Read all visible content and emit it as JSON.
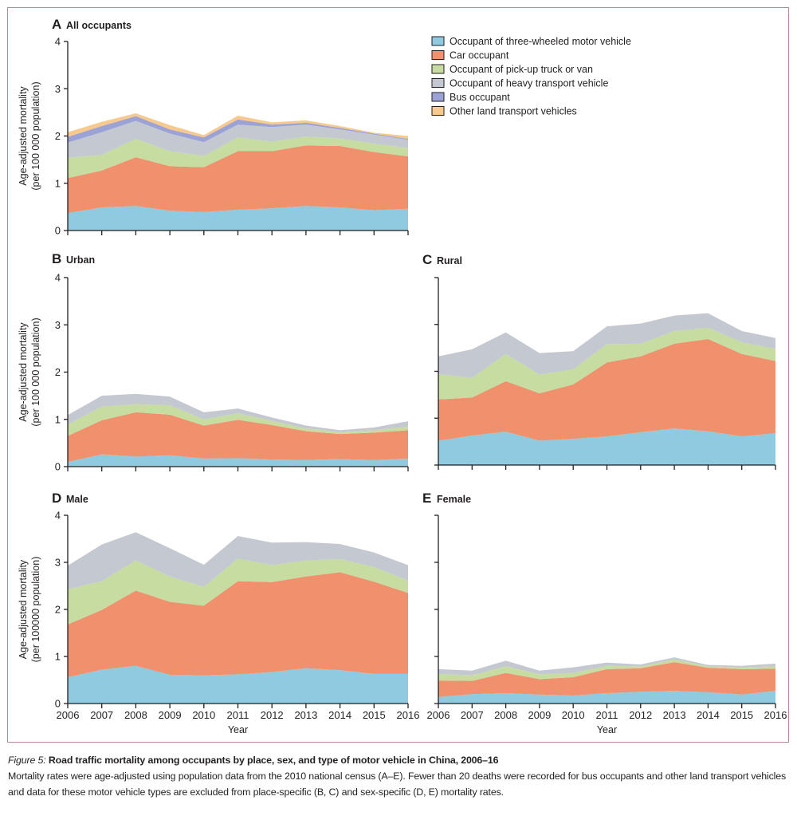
{
  "chart_data": [
    {
      "id": "A",
      "type": "area",
      "stacked": true,
      "panel_letter": "A",
      "title": "All occupants",
      "xlabel": "",
      "ylabel": "Age-adjusted mortality",
      "ylabel2": "(per 100 000 population)",
      "show_y_tick_labels": true,
      "show_x_tick_labels": false,
      "ylim": [
        0,
        4
      ],
      "yticks": [
        0,
        1,
        2,
        3,
        4
      ],
      "x": [
        2006,
        2007,
        2008,
        2009,
        2010,
        2011,
        2012,
        2013,
        2014,
        2015,
        2016
      ],
      "series": [
        {
          "name": "Occupant of three-wheeled motor vehicle",
          "key": "three_wheeled",
          "values": [
            0.37,
            0.49,
            0.52,
            0.42,
            0.39,
            0.44,
            0.47,
            0.52,
            0.49,
            0.43,
            0.46
          ]
        },
        {
          "name": "Car occupant",
          "key": "car",
          "values": [
            0.74,
            0.78,
            1.03,
            0.94,
            0.95,
            1.24,
            1.21,
            1.28,
            1.3,
            1.23,
            1.11
          ]
        },
        {
          "name": "Occupant of pick-up truck or van",
          "key": "pickup",
          "values": [
            0.43,
            0.33,
            0.39,
            0.32,
            0.24,
            0.29,
            0.2,
            0.19,
            0.16,
            0.18,
            0.18
          ]
        },
        {
          "name": "Occupant of heavy transport vehicle",
          "key": "heavy",
          "values": [
            0.32,
            0.48,
            0.38,
            0.37,
            0.29,
            0.27,
            0.31,
            0.25,
            0.19,
            0.19,
            0.17
          ]
        },
        {
          "name": "Bus occupant",
          "key": "bus",
          "values": [
            0.12,
            0.13,
            0.1,
            0.09,
            0.1,
            0.11,
            0.05,
            0.04,
            0.03,
            0.02,
            0.02
          ]
        },
        {
          "name": "Other land transport vehicles",
          "key": "other",
          "values": [
            0.1,
            0.09,
            0.06,
            0.09,
            0.05,
            0.08,
            0.05,
            0.05,
            0.04,
            0.02,
            0.06
          ]
        }
      ],
      "legend": "right"
    },
    {
      "id": "B",
      "type": "area",
      "stacked": true,
      "panel_letter": "B",
      "title": "Urban",
      "xlabel": "",
      "ylabel": "Age-adjusted mortality",
      "ylabel2": "(per 100 000 population)",
      "show_y_tick_labels": true,
      "show_x_tick_labels": false,
      "ylim": [
        0,
        4
      ],
      "yticks": [
        0,
        1,
        2,
        3,
        4
      ],
      "x": [
        2006,
        2007,
        2008,
        2009,
        2010,
        2011,
        2012,
        2013,
        2014,
        2015,
        2016
      ],
      "series": [
        {
          "name": "Occupant of three-wheeled motor vehicle",
          "key": "three_wheeled",
          "values": [
            0.1,
            0.26,
            0.21,
            0.24,
            0.17,
            0.18,
            0.15,
            0.14,
            0.16,
            0.14,
            0.17
          ]
        },
        {
          "name": "Car occupant",
          "key": "car",
          "values": [
            0.55,
            0.72,
            0.94,
            0.86,
            0.7,
            0.81,
            0.73,
            0.61,
            0.53,
            0.58,
            0.6
          ]
        },
        {
          "name": "Occupant of pick-up truck or van",
          "key": "pickup",
          "values": [
            0.24,
            0.29,
            0.17,
            0.2,
            0.13,
            0.14,
            0.09,
            0.06,
            0.04,
            0.05,
            0.08
          ]
        },
        {
          "name": "Occupant of heavy transport vehicle",
          "key": "heavy",
          "values": [
            0.2,
            0.23,
            0.22,
            0.18,
            0.15,
            0.1,
            0.07,
            0.06,
            0.04,
            0.06,
            0.11
          ]
        }
      ]
    },
    {
      "id": "C",
      "type": "area",
      "stacked": true,
      "panel_letter": "C",
      "title": "Rural",
      "xlabel": "",
      "ylabel": "",
      "show_y_tick_labels": false,
      "show_x_tick_labels": false,
      "ylim": [
        0,
        4
      ],
      "yticks": [
        0,
        1,
        2,
        3,
        4
      ],
      "x": [
        2006,
        2007,
        2008,
        2009,
        2010,
        2011,
        2012,
        2013,
        2014,
        2015,
        2016
      ],
      "series": [
        {
          "name": "Occupant of three-wheeled motor vehicle",
          "key": "three_wheeled",
          "values": [
            0.52,
            0.63,
            0.71,
            0.52,
            0.56,
            0.61,
            0.7,
            0.78,
            0.72,
            0.61,
            0.68
          ]
        },
        {
          "name": "Car occupant",
          "key": "car",
          "values": [
            0.88,
            0.81,
            1.08,
            1.01,
            1.16,
            1.58,
            1.62,
            1.81,
            1.97,
            1.76,
            1.54
          ]
        },
        {
          "name": "Occupant of pick-up truck or van",
          "key": "pickup",
          "values": [
            0.54,
            0.42,
            0.58,
            0.4,
            0.32,
            0.39,
            0.27,
            0.27,
            0.24,
            0.25,
            0.26
          ]
        },
        {
          "name": "Occupant of heavy transport vehicle",
          "key": "heavy",
          "values": [
            0.38,
            0.61,
            0.46,
            0.46,
            0.39,
            0.38,
            0.43,
            0.33,
            0.31,
            0.24,
            0.23
          ]
        }
      ]
    },
    {
      "id": "D",
      "type": "area",
      "stacked": true,
      "panel_letter": "D",
      "title": "Male",
      "xlabel": "Year",
      "ylabel": "Age-adjusted mortality",
      "ylabel2": "(per 100000 population)",
      "show_y_tick_labels": true,
      "show_x_tick_labels": true,
      "ylim": [
        0,
        4
      ],
      "yticks": [
        0,
        1,
        2,
        3,
        4
      ],
      "x": [
        2006,
        2007,
        2008,
        2009,
        2010,
        2011,
        2012,
        2013,
        2014,
        2015,
        2016
      ],
      "series": [
        {
          "name": "Occupant of three-wheeled motor vehicle",
          "key": "three_wheeled",
          "values": [
            0.56,
            0.72,
            0.8,
            0.61,
            0.6,
            0.62,
            0.67,
            0.75,
            0.71,
            0.63,
            0.63
          ]
        },
        {
          "name": "Car occupant",
          "key": "car",
          "values": [
            1.12,
            1.27,
            1.6,
            1.55,
            1.48,
            1.98,
            1.91,
            1.95,
            2.08,
            1.96,
            1.72
          ]
        },
        {
          "name": "Occupant of pick-up truck or van",
          "key": "pickup",
          "values": [
            0.75,
            0.61,
            0.64,
            0.54,
            0.4,
            0.48,
            0.36,
            0.34,
            0.28,
            0.31,
            0.26
          ]
        },
        {
          "name": "Occupant of heavy transport vehicle",
          "key": "heavy",
          "values": [
            0.5,
            0.78,
            0.6,
            0.6,
            0.47,
            0.48,
            0.48,
            0.39,
            0.32,
            0.31,
            0.33
          ]
        }
      ]
    },
    {
      "id": "E",
      "type": "area",
      "stacked": true,
      "panel_letter": "E",
      "title": "Female",
      "xlabel": "Year",
      "ylabel": "",
      "show_y_tick_labels": false,
      "show_x_tick_labels": true,
      "ylim": [
        0,
        4
      ],
      "yticks": [
        0,
        1,
        2,
        3,
        4
      ],
      "x": [
        2006,
        2007,
        2008,
        2009,
        2010,
        2011,
        2012,
        2013,
        2014,
        2015,
        2016
      ],
      "series": [
        {
          "name": "Occupant of three-wheeled motor vehicle",
          "key": "three_wheeled",
          "values": [
            0.14,
            0.2,
            0.22,
            0.19,
            0.17,
            0.22,
            0.25,
            0.27,
            0.24,
            0.19,
            0.27
          ]
        },
        {
          "name": "Car occupant",
          "key": "car",
          "values": [
            0.35,
            0.28,
            0.43,
            0.33,
            0.39,
            0.51,
            0.5,
            0.61,
            0.52,
            0.54,
            0.47
          ]
        },
        {
          "name": "Occupant of pick-up truck or van",
          "key": "pickup",
          "values": [
            0.14,
            0.12,
            0.14,
            0.1,
            0.09,
            0.07,
            0.04,
            0.06,
            0.03,
            0.04,
            0.05
          ]
        },
        {
          "name": "Occupant of heavy transport vehicle",
          "key": "heavy",
          "values": [
            0.1,
            0.1,
            0.12,
            0.08,
            0.12,
            0.07,
            0.04,
            0.04,
            0.03,
            0.03,
            0.06
          ]
        }
      ]
    }
  ],
  "legend": {
    "items": [
      {
        "key": "three_wheeled",
        "label": "Occupant of three-wheeled motor vehicle"
      },
      {
        "key": "car",
        "label": "Car occupant"
      },
      {
        "key": "pickup",
        "label": "Occupant of pick-up truck or van"
      },
      {
        "key": "heavy",
        "label": "Occupant of heavy transport vehicle"
      },
      {
        "key": "bus",
        "label": "Bus occupant"
      },
      {
        "key": "other",
        "label": "Other land transport vehicles"
      }
    ]
  },
  "colors": {
    "three_wheeled": "#8ecae0",
    "car": "#f0906c",
    "pickup": "#c6dca0",
    "heavy": "#c4c8d0",
    "bus": "#9ba2d6",
    "other": "#f7c98c",
    "frame": "#b88a96"
  },
  "caption": {
    "fig_label": "Figure 5:",
    "title": " Road traffic mortality among occupants by place, sex, and type of motor vehicle in China, 2006–16",
    "body": "Mortality rates were age-adjusted using population data from the 2010 national census (A–E). Fewer than 20 deaths were recorded for bus occupants and other land transport vehicles and data for these motor vehicle types are excluded from place-specific (B, C) and sex-specific (D, E) mortality rates."
  }
}
